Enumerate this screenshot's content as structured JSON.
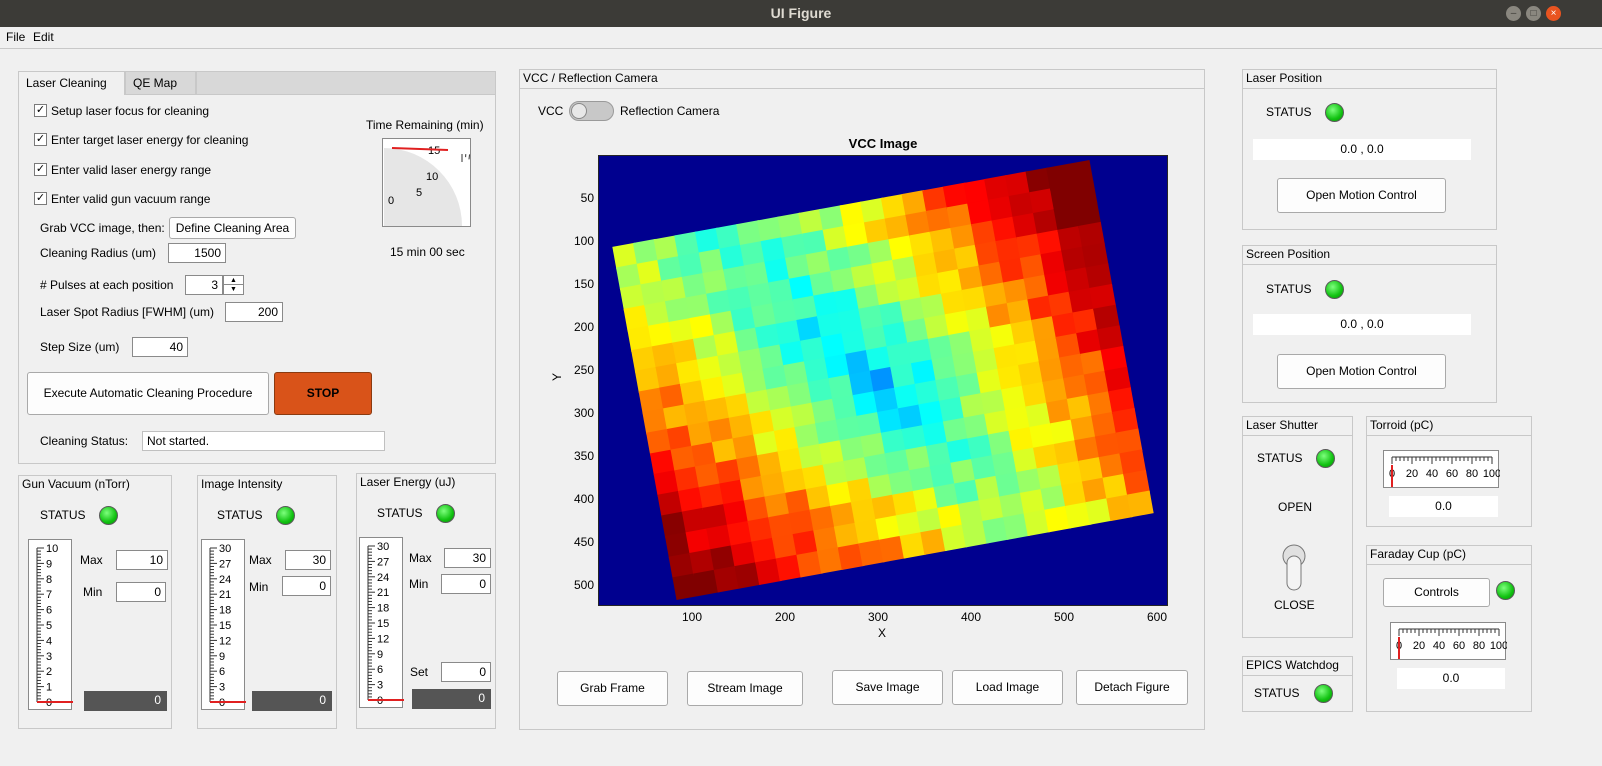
{
  "window": {
    "title": "UI Figure"
  },
  "menu": {
    "file": "File",
    "edit": "Edit"
  },
  "tabs": {
    "active": "Laser Cleaning",
    "inactive": "QE Map"
  },
  "cleaning": {
    "checks": [
      {
        "label": "Setup laser focus for cleaning",
        "checked": true
      },
      {
        "label": "Enter target laser energy for cleaning",
        "checked": true
      },
      {
        "label": "Enter valid laser energy range",
        "checked": true
      },
      {
        "label": "Enter valid gun vacuum range",
        "checked": true
      }
    ],
    "check_mark": "✓",
    "grab_label": "Grab VCC image, then:",
    "define_button": "Define Cleaning Area",
    "radius_label": "Cleaning Radius (um)",
    "radius_value": "1500",
    "pulses_label": "# Pulses at each position",
    "pulses_value": "3",
    "spot_label": "Laser Spot Radius [FWHM] (um)",
    "spot_value": "200",
    "step_label": "Step Size (um)",
    "step_value": "40",
    "execute_button": "Execute Automatic Cleaning Procedure",
    "stop_button": "STOP",
    "status_label": "Cleaning Status:",
    "status_value": "Not started.",
    "time_label": "Time Remaining (min)",
    "time_value": "15 min 00 sec",
    "time_ticks": [
      "0",
      "5",
      "10",
      "15"
    ],
    "time_level": 15
  },
  "gun_vacuum": {
    "title": "Gun Vacuum (nTorr)",
    "status": "STATUS",
    "ticks": [
      "10",
      "9",
      "8",
      "7",
      "6",
      "5",
      "4",
      "3",
      "2",
      "1",
      "0"
    ],
    "max_label": "Max",
    "max": "10",
    "min_label": "Min",
    "min": "0",
    "value": "0",
    "level": 0
  },
  "image_intensity": {
    "title": "Image Intensity",
    "status": "STATUS",
    "ticks": [
      "30",
      "27",
      "24",
      "21",
      "18",
      "15",
      "12",
      "9",
      "6",
      "3",
      "0"
    ],
    "max_label": "Max",
    "max": "30",
    "min_label": "Min",
    "min": "0",
    "value": "0",
    "level": 0
  },
  "laser_energy": {
    "title": "Laser Energy (uJ)",
    "status": "STATUS",
    "ticks": [
      "30",
      "27",
      "24",
      "21",
      "18",
      "15",
      "12",
      "9",
      "6",
      "3",
      "0"
    ],
    "max_label": "Max",
    "max": "30",
    "min_label": "Min",
    "min": "0",
    "set_label": "Set",
    "set": "0",
    "value": "0",
    "level": 0
  },
  "vcc": {
    "panel_title": "VCC / Reflection Camera",
    "switch_left": "VCC",
    "switch_right": "Reflection Camera",
    "plot_title": "VCC Image",
    "xlabel": "X",
    "ylabel": "Y",
    "xticks": [
      "100",
      "200",
      "300",
      "400",
      "500",
      "600"
    ],
    "yticks": [
      "50",
      "100",
      "150",
      "200",
      "250",
      "300",
      "350",
      "400",
      "450",
      "500"
    ],
    "buttons": {
      "grab": "Grab Frame",
      "stream": "Stream Image",
      "save": "Save Image",
      "load": "Load Image",
      "detach": "Detach Figure"
    }
  },
  "laser_position": {
    "title": "Laser Position",
    "status": "STATUS",
    "value": "0.0 , 0.0",
    "button": "Open Motion Control"
  },
  "screen_position": {
    "title": "Screen Position",
    "status": "STATUS",
    "value": "0.0 , 0.0",
    "button": "Open Motion Control"
  },
  "laser_shutter": {
    "title": "Laser Shutter",
    "status": "STATUS",
    "open": "OPEN",
    "close": "CLOSE"
  },
  "torroid": {
    "title": "Torroid (pC)",
    "ticks": [
      "0",
      "20",
      "40",
      "60",
      "80",
      "100"
    ],
    "value": "0.0",
    "level": 0
  },
  "faraday": {
    "title": "Faraday Cup (pC)",
    "button": "Controls",
    "ticks": [
      "0",
      "20",
      "40",
      "60",
      "80",
      "100"
    ],
    "value": "0.0",
    "level": 0
  },
  "watchdog": {
    "title": "EPICS Watchdog",
    "status": "STATUS"
  },
  "colors": {
    "status_ok": "#11c211",
    "stop": "#d95319",
    "background": "#00008f",
    "needle": "#e02020"
  }
}
